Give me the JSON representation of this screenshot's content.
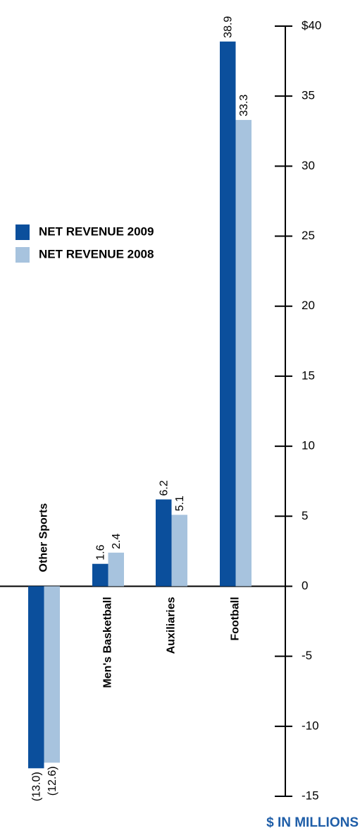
{
  "chart_data": {
    "type": "bar",
    "categories": [
      "Other Sports",
      "Men's Basketball",
      "Auxiliaries",
      "Football"
    ],
    "series": [
      {
        "name": "NET REVENUE 2009",
        "color": "#0b4f9c",
        "values": [
          -13.0,
          1.6,
          6.2,
          38.9
        ],
        "value_labels": [
          "(13.0)",
          "1.6",
          "6.2",
          "38.9"
        ]
      },
      {
        "name": "NET REVENUE 2008",
        "color": "#a7c3de",
        "values": [
          -12.6,
          2.4,
          5.1,
          33.3
        ],
        "value_labels": [
          "(12.6)",
          "2.4",
          "5.1",
          "33.3"
        ]
      }
    ],
    "ylim": [
      -15,
      40
    ],
    "yticks": [
      {
        "value": 40,
        "label": "$40"
      },
      35,
      30,
      25,
      20,
      15,
      10,
      5,
      0,
      -5,
      -10,
      -15
    ],
    "ylabel": "$ IN MILLIONS",
    "legend": "left"
  }
}
